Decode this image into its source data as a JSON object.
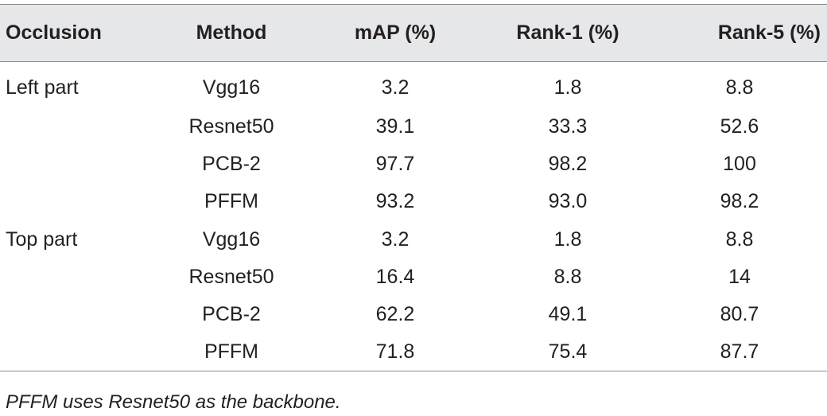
{
  "table": {
    "headers": [
      "Occlusion",
      "Method",
      "mAP (%)",
      "Rank-1 (%)",
      "Rank-5 (%)"
    ],
    "rows": [
      [
        "Left part",
        "Vgg16",
        "3.2",
        "1.8",
        "8.8"
      ],
      [
        "",
        "Resnet50",
        "39.1",
        "33.3",
        "52.6"
      ],
      [
        "",
        "PCB-2",
        "97.7",
        "98.2",
        "100"
      ],
      [
        "",
        "PFFM",
        "93.2",
        "93.0",
        "98.2"
      ],
      [
        "Top part",
        "Vgg16",
        "3.2",
        "1.8",
        "8.8"
      ],
      [
        "",
        "Resnet50",
        "16.4",
        "8.8",
        "14"
      ],
      [
        "",
        "PCB-2",
        "62.2",
        "49.1",
        "80.7"
      ],
      [
        "",
        "PFFM",
        "71.8",
        "75.4",
        "87.7"
      ]
    ]
  },
  "footnote": "PFFM uses Resnet50 as the backbone."
}
